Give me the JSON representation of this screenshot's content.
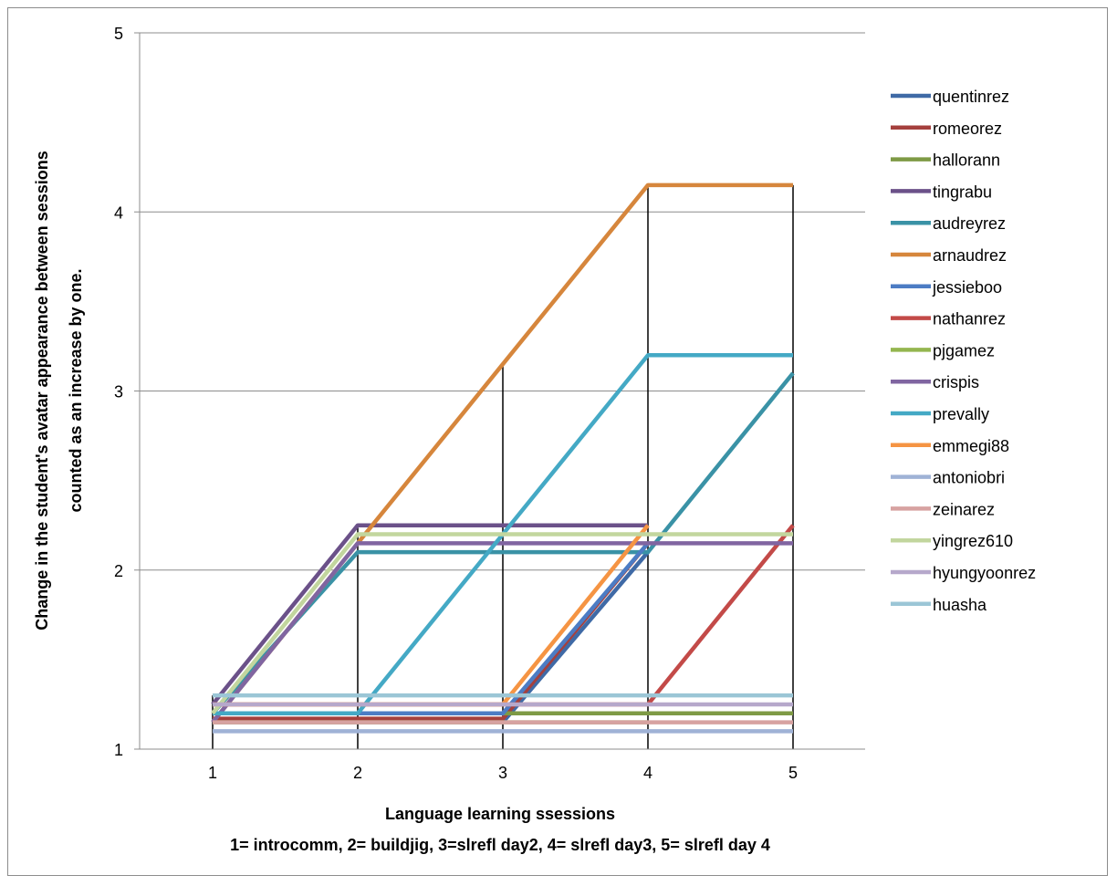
{
  "chart_data": {
    "type": "line",
    "x": [
      1,
      2,
      3,
      4,
      5
    ],
    "xlabel": "Language learning ssessions",
    "xlabel_sub": "1= introcomm, 2= buildjig, 3=slrefl day2, 4= slrefl day3, 5= slrefl day 4",
    "ylabel_line1": "Change in the student's avatar appearance between sessions",
    "ylabel_line2": "counted as an increase by one.",
    "ylim": [
      1,
      5
    ],
    "yticks": [
      1,
      2,
      3,
      4,
      5
    ],
    "grid": "horizontal",
    "legend": "right",
    "series": [
      {
        "name": "quentinrez",
        "color": "#3f6aa6",
        "values": [
          1.15,
          1.15,
          1.15,
          2.1,
          null
        ]
      },
      {
        "name": "romeorez",
        "color": "#a5403d",
        "values": [
          1.17,
          1.17,
          1.17,
          2.15,
          null
        ]
      },
      {
        "name": "hallorann",
        "color": "#7e9a45",
        "values": [
          1.2,
          1.2,
          1.2,
          1.2,
          1.2
        ]
      },
      {
        "name": "tingrabu",
        "color": "#6b5189",
        "values": [
          1.25,
          2.25,
          2.25,
          2.25,
          null
        ]
      },
      {
        "name": "audreyrez",
        "color": "#3a92a6",
        "values": [
          1.2,
          2.1,
          2.1,
          2.1,
          3.1
        ]
      },
      {
        "name": "arnaudrez",
        "color": "#d6863c",
        "values": [
          1.15,
          2.15,
          3.15,
          4.15,
          4.15
        ]
      },
      {
        "name": "jessieboo",
        "color": "#4c7cc4",
        "values": [
          1.2,
          1.2,
          1.2,
          2.15,
          null
        ]
      },
      {
        "name": "nathanrez",
        "color": "#c34a48",
        "values": [
          1.25,
          1.25,
          1.25,
          1.25,
          2.25
        ]
      },
      {
        "name": "pjgamez",
        "color": "#94b64f",
        "values": [
          1.15,
          1.15,
          1.15,
          1.15,
          null
        ]
      },
      {
        "name": "crispis",
        "color": "#8065a1",
        "values": [
          1.15,
          2.15,
          2.15,
          2.15,
          2.15
        ]
      },
      {
        "name": "prevally",
        "color": "#44a9c5",
        "values": [
          1.2,
          1.2,
          2.2,
          3.2,
          3.2
        ]
      },
      {
        "name": "emmegi88",
        "color": "#f59443",
        "values": [
          1.25,
          1.25,
          1.25,
          2.25,
          null
        ]
      },
      {
        "name": "antoniobri",
        "color": "#9fb2d6",
        "values": [
          1.1,
          1.1,
          1.1,
          1.1,
          1.1
        ]
      },
      {
        "name": "zeinarez",
        "color": "#d7a2a1",
        "values": [
          1.15,
          1.15,
          1.15,
          1.15,
          1.15
        ]
      },
      {
        "name": "yingrez610",
        "color": "#c2d69e",
        "values": [
          1.2,
          2.2,
          2.2,
          2.2,
          2.2
        ]
      },
      {
        "name": "hyungyoonrez",
        "color": "#b6a8cb",
        "values": [
          1.25,
          1.25,
          1.25,
          1.25,
          1.25
        ]
      },
      {
        "name": "huasha",
        "color": "#9bc6d6",
        "values": [
          1.3,
          1.3,
          1.3,
          1.3,
          1.3
        ]
      }
    ]
  }
}
